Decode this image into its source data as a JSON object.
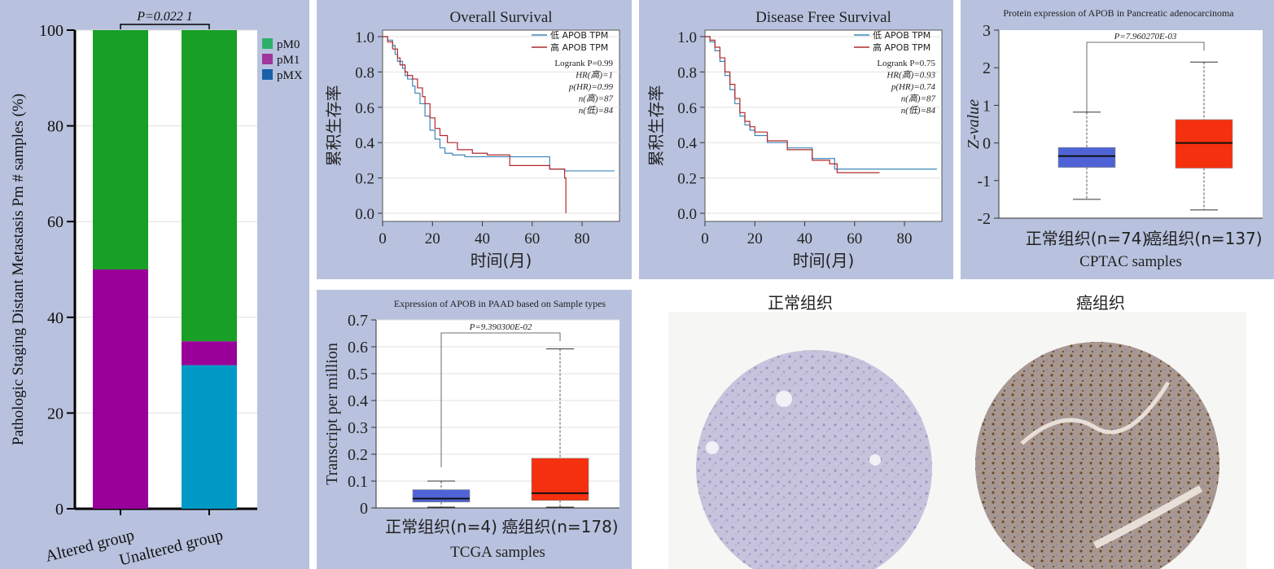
{
  "colors": {
    "panel_bg": "#b8c2de",
    "pM0": "#189f26",
    "pM1": "#990099",
    "pMX": "#0099c6",
    "legend_pM0": "#2eb06a",
    "legend_pM1": "#a0359a",
    "legend_pMX": "#1a5fa8",
    "km_low": "#3d86b8",
    "km_high": "#b2282c",
    "box_normal": "#4f63d6",
    "box_tumor": "#f5300f"
  },
  "chart_data": [
    {
      "id": "bar",
      "type": "bar",
      "stacked": true,
      "categories": [
        "Altered group",
        "Unaltered group"
      ],
      "series": [
        {
          "name": "pM0",
          "values": [
            50,
            65
          ]
        },
        {
          "name": "pM1",
          "values": [
            50,
            5
          ]
        },
        {
          "name": "pMX",
          "values": [
            0,
            30
          ]
        }
      ],
      "ylabel": "Pathologic Staging Distant Metastasis Pm # samples (%)",
      "ylim": [
        0,
        100
      ],
      "yticks": [
        "0",
        "20",
        "40",
        "60",
        "80",
        "100"
      ],
      "annotation": "P=0.022 1",
      "legend_position": "top-right"
    },
    {
      "id": "os",
      "type": "line",
      "title": "Overall Survival",
      "xlabel": "时间(月)",
      "ylabel": "累积生存率",
      "xlim": [
        0,
        95
      ],
      "ylim": [
        0,
        1
      ],
      "xticks": [
        "0",
        "20",
        "40",
        "60",
        "80"
      ],
      "yticks": [
        "0.0",
        "0.2",
        "0.4",
        "0.6",
        "0.8",
        "1.0"
      ],
      "legend": [
        "低 APOB TPM",
        "高 APOB TPM"
      ],
      "stats": [
        "Logrank P=0.99",
        "HR(高)=1",
        "p(HR)=0.99",
        "n(高)=87",
        "n(低)=84"
      ],
      "series": [
        {
          "name": "低 APOB TPM",
          "x": [
            0,
            2,
            4,
            5,
            6,
            8,
            9,
            10,
            12,
            13,
            15,
            17,
            19,
            21,
            23,
            25,
            28,
            33,
            50,
            58,
            67,
            73,
            93
          ],
          "y": [
            1.0,
            0.98,
            0.95,
            0.9,
            0.86,
            0.82,
            0.78,
            0.76,
            0.72,
            0.68,
            0.62,
            0.55,
            0.47,
            0.42,
            0.37,
            0.34,
            0.33,
            0.32,
            0.32,
            0.32,
            0.25,
            0.24,
            0.24
          ]
        },
        {
          "name": "高 APOB TPM",
          "x": [
            0,
            2,
            4,
            6,
            7,
            9,
            10,
            12,
            14,
            16,
            17,
            19,
            21,
            23,
            26,
            30,
            36,
            42,
            51,
            59,
            67,
            71,
            73,
            73.5
          ],
          "y": [
            1.0,
            0.97,
            0.93,
            0.88,
            0.84,
            0.8,
            0.78,
            0.76,
            0.71,
            0.66,
            0.62,
            0.54,
            0.48,
            0.44,
            0.4,
            0.36,
            0.34,
            0.33,
            0.27,
            0.27,
            0.25,
            0.25,
            0.2,
            0.0
          ]
        }
      ]
    },
    {
      "id": "dfs",
      "type": "line",
      "title": "Disease Free Survival",
      "xlabel": "时间(月)",
      "ylabel": "累积生存率",
      "xlim": [
        0,
        95
      ],
      "ylim": [
        0,
        1
      ],
      "xticks": [
        "0",
        "20",
        "40",
        "60",
        "80"
      ],
      "yticks": [
        "0.0",
        "0.2",
        "0.4",
        "0.6",
        "0.8",
        "1.0"
      ],
      "legend": [
        "低 APOB TPM",
        "高 APOB TPM"
      ],
      "stats": [
        "Logrank P=0.75",
        "HR(高)=0.93",
        "p(HR)=0.74",
        "n(高)=87",
        "n(低)=84"
      ],
      "series": [
        {
          "name": "低 APOB TPM",
          "x": [
            0,
            2,
            4,
            6,
            8,
            10,
            12,
            14,
            16,
            18,
            20,
            25,
            33,
            43,
            52,
            55,
            93
          ],
          "y": [
            1.0,
            0.97,
            0.92,
            0.86,
            0.78,
            0.7,
            0.62,
            0.55,
            0.5,
            0.47,
            0.44,
            0.4,
            0.37,
            0.31,
            0.25,
            0.25,
            0.25
          ]
        },
        {
          "name": "高 APOB TPM",
          "x": [
            0,
            2,
            4,
            6,
            8,
            10,
            12,
            14,
            16,
            18,
            20,
            25,
            33,
            43,
            50,
            53,
            70
          ],
          "y": [
            1.0,
            0.98,
            0.94,
            0.88,
            0.8,
            0.73,
            0.65,
            0.57,
            0.52,
            0.49,
            0.46,
            0.41,
            0.36,
            0.3,
            0.28,
            0.23,
            0.23
          ]
        }
      ]
    },
    {
      "id": "cptac",
      "type": "box",
      "title": "Protein expression of APOB in Pancreatic adenocarcinoma",
      "ylabel": "Z-value",
      "xlabel": "CPTAC samples",
      "ylim": [
        -2,
        3
      ],
      "yticks": [
        "-2",
        "-1",
        "0",
        "1",
        "2",
        "3"
      ],
      "categories": [
        "正常组织(n=74)",
        "癌组织(n=137)"
      ],
      "boxes": [
        {
          "min": -1.5,
          "q1": -0.65,
          "median": -0.35,
          "q3": -0.12,
          "max": 0.82
        },
        {
          "min": -1.78,
          "q1": -0.67,
          "median": 0.0,
          "q3": 0.62,
          "max": 2.15
        }
      ],
      "annotation": "P=7.960270E-03"
    },
    {
      "id": "tcga",
      "type": "box",
      "title": "Expression of APOB in PAAD based on Sample types",
      "ylabel": "Transcript per million",
      "xlabel": "TCGA samples",
      "ylim": [
        0,
        0.7
      ],
      "yticks": [
        "0",
        "0.1",
        "0.2",
        "0.3",
        "0.4",
        "0.5",
        "0.6",
        "0.7"
      ],
      "categories": [
        "正常组织(n=4)",
        "癌组织(n=178)"
      ],
      "boxes": [
        {
          "min": 0.003,
          "q1": 0.022,
          "median": 0.035,
          "q3": 0.068,
          "max": 0.1
        },
        {
          "min": 0.003,
          "q1": 0.028,
          "median": 0.055,
          "q3": 0.185,
          "max": 0.592
        }
      ],
      "annotation": "P=9.390300E-02"
    }
  ],
  "ihc": {
    "normal_label": "正常组织",
    "tumor_label": "癌组织"
  }
}
